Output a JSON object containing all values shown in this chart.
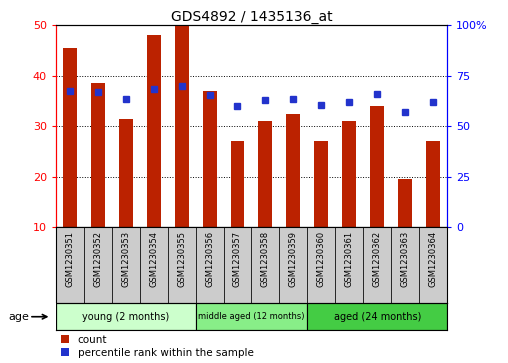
{
  "title": "GDS4892 / 1435136_at",
  "samples": [
    "GSM1230351",
    "GSM1230352",
    "GSM1230353",
    "GSM1230354",
    "GSM1230355",
    "GSM1230356",
    "GSM1230357",
    "GSM1230358",
    "GSM1230359",
    "GSM1230360",
    "GSM1230361",
    "GSM1230362",
    "GSM1230363",
    "GSM1230364"
  ],
  "counts": [
    45.5,
    38.5,
    31.5,
    48.0,
    50.0,
    37.0,
    27.0,
    31.0,
    32.5,
    27.0,
    31.0,
    34.0,
    19.5,
    27.0
  ],
  "percentile_ranks": [
    67.5,
    67.0,
    63.5,
    68.5,
    70.0,
    65.5,
    60.0,
    63.0,
    63.5,
    60.5,
    62.0,
    66.0,
    57.0,
    62.0
  ],
  "bar_color": "#bb2200",
  "percentile_color": "#2233cc",
  "ylim_left": [
    10,
    50
  ],
  "ylim_right": [
    0,
    100
  ],
  "yticks_left": [
    10,
    20,
    30,
    40,
    50
  ],
  "yticks_right": [
    0,
    25,
    50,
    75,
    100
  ],
  "ytick_right_labels": [
    "0",
    "25",
    "50",
    "75",
    "100%"
  ],
  "groups": [
    {
      "label": "young (2 months)",
      "start": 0,
      "end": 5,
      "color": "#ccffcc"
    },
    {
      "label": "middle aged (12 months)",
      "start": 5,
      "end": 9,
      "color": "#88ee88"
    },
    {
      "label": "aged (24 months)",
      "start": 9,
      "end": 14,
      "color": "#44cc44"
    }
  ],
  "legend_count_label": "count",
  "legend_percentile_label": "percentile rank within the sample",
  "age_label": "age",
  "background_color": "#ffffff",
  "grid_color": "#000000",
  "title_fontsize": 10,
  "tick_fontsize": 8,
  "bar_width": 0.5,
  "xtick_gray": "#d0d0d0"
}
